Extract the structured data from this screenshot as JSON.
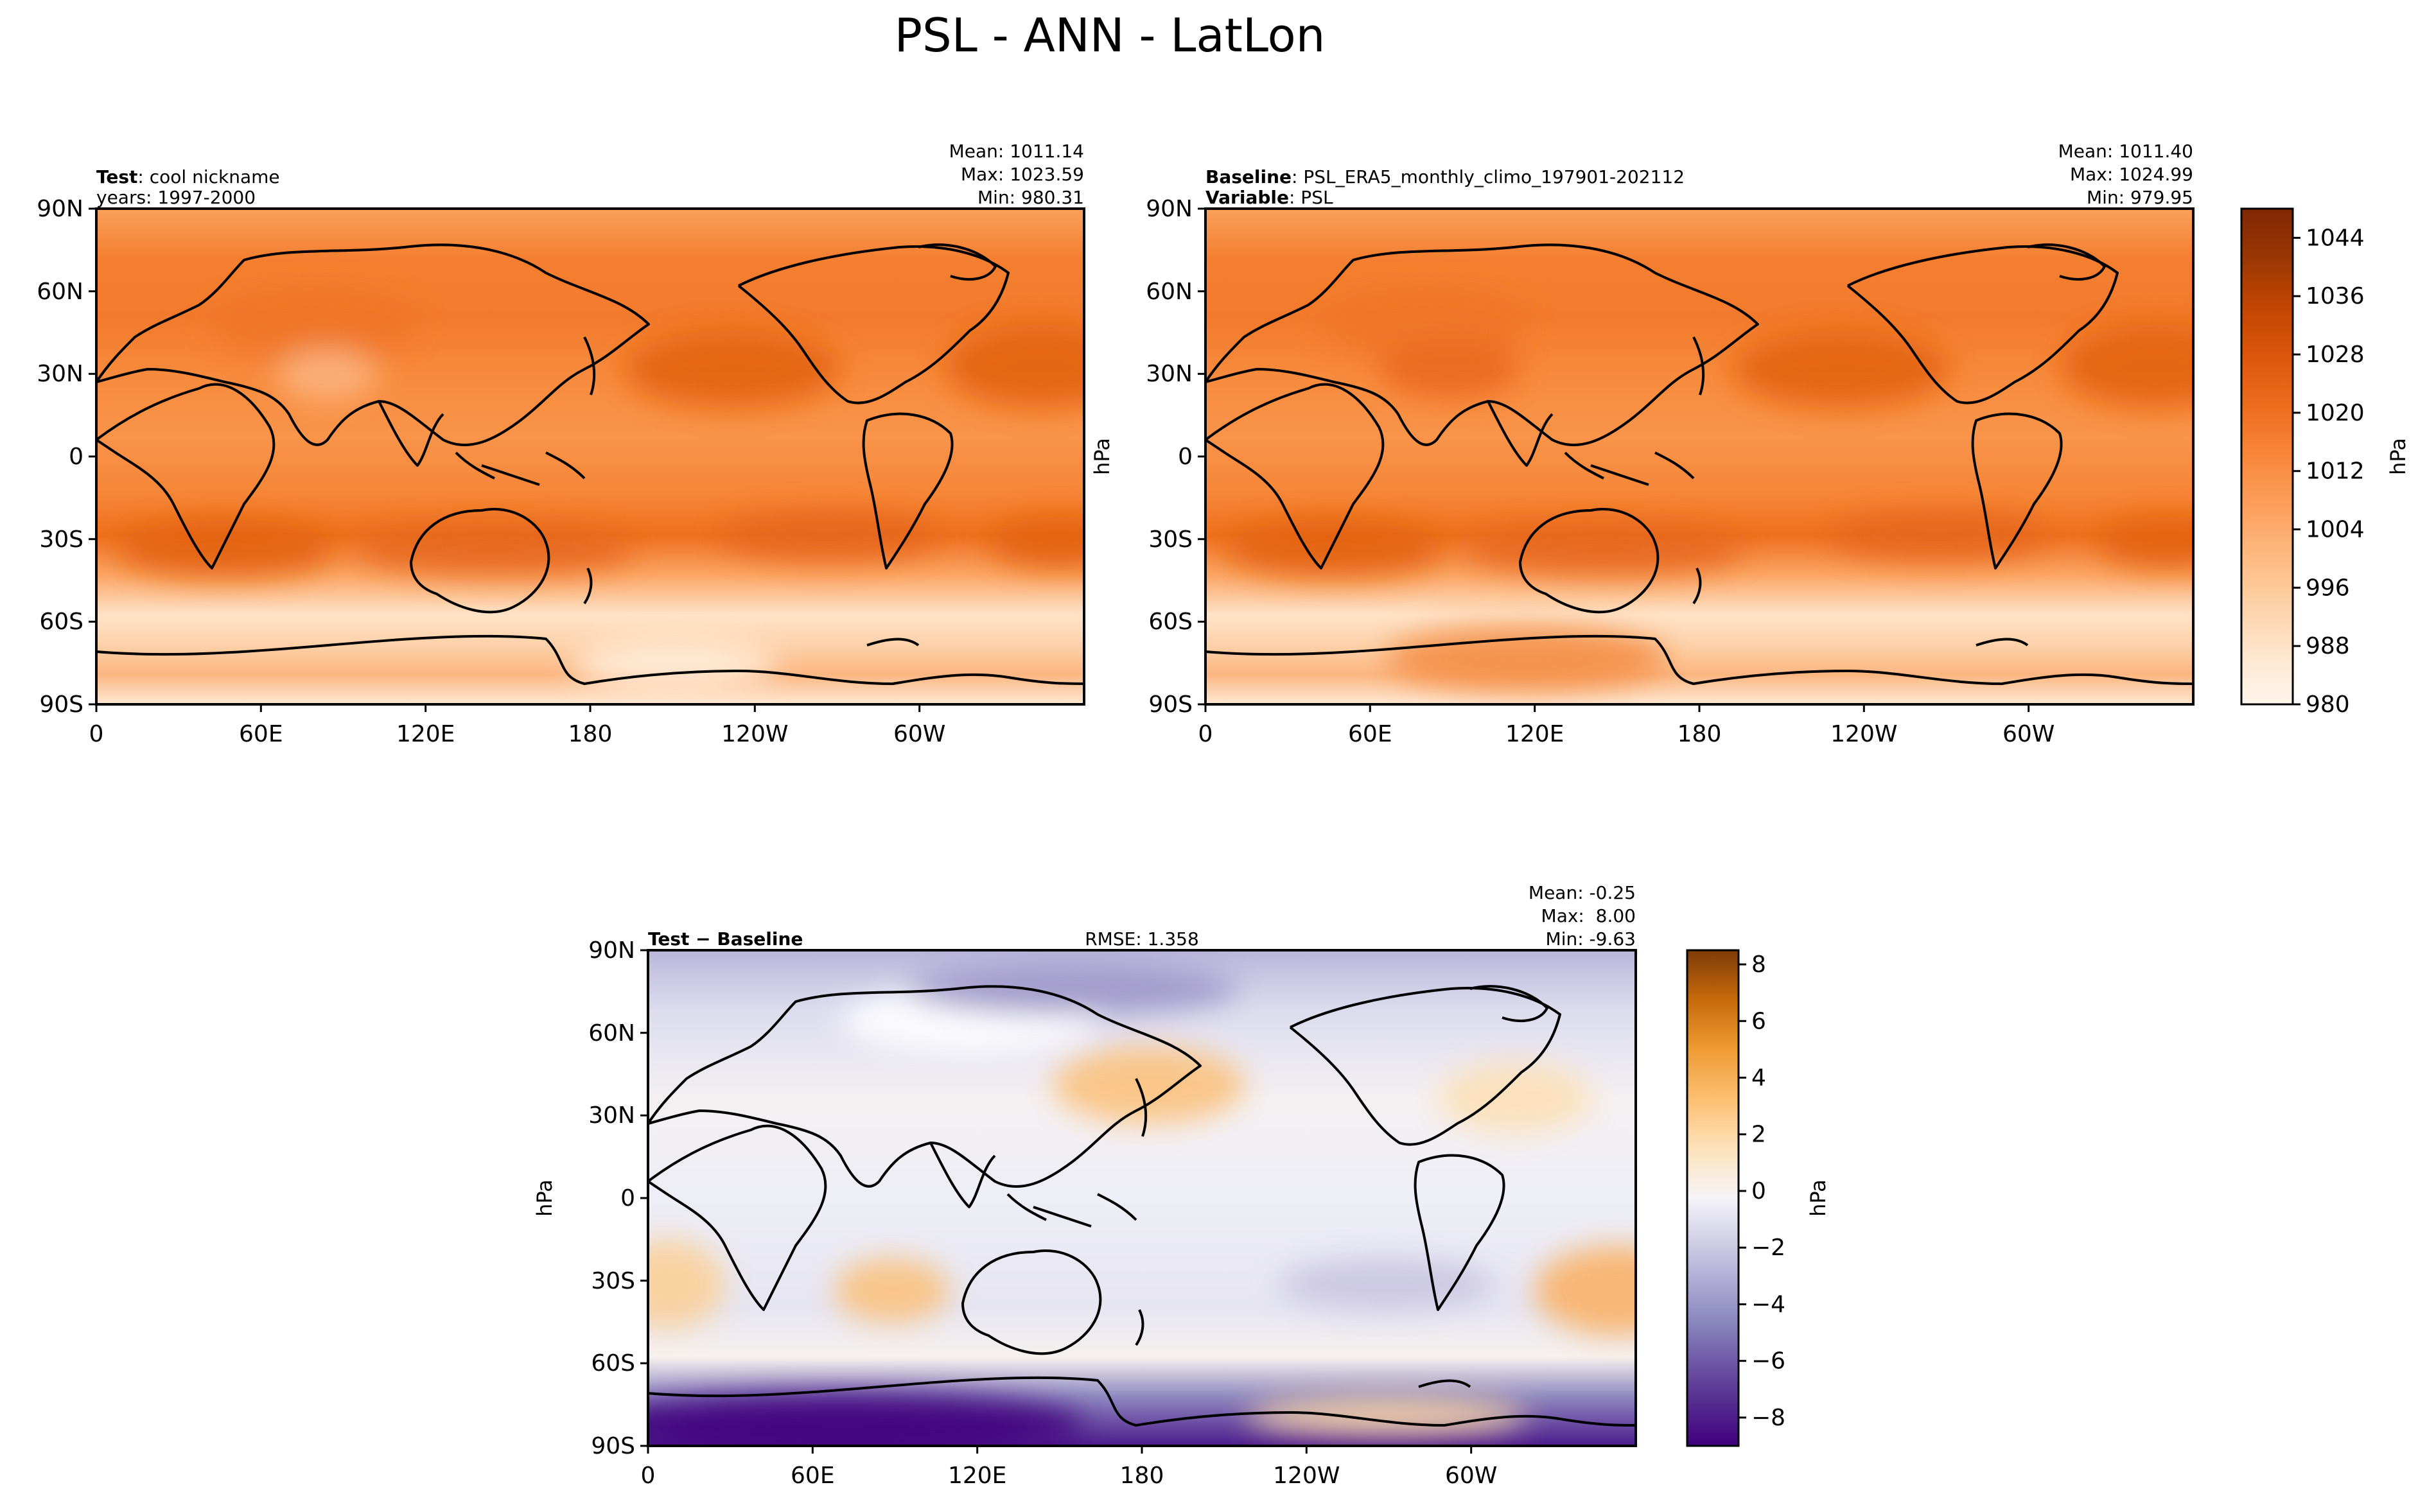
{
  "figure": {
    "title": "PSL - ANN - LatLon"
  },
  "colors": {
    "orange_ramp": [
      "#fff5eb",
      "#fee8d3",
      "#fdd9b4",
      "#fdc28c",
      "#fda762",
      "#f98d3f",
      "#ed7220",
      "#d95c0b",
      "#b94602",
      "#8c3403",
      "#7f2704"
    ],
    "diff_ramp": [
      "#3f007d",
      "#61409b",
      "#8582bc",
      "#b4b3d6",
      "#dedeed",
      "#f7f7f7",
      "#fde6c2",
      "#fdc177",
      "#e98e26",
      "#bc5c07",
      "#7f3b08"
    ],
    "coast": "#000000"
  },
  "chart_data": [
    {
      "type": "heatmap",
      "panel": "test",
      "label_bold": "Test",
      "label_text": ": cool nickname",
      "label_line2_bold": "",
      "label_line2_text": "years: 1997-2000",
      "stats": [
        "Mean: 1011.14",
        "Max: 1023.59",
        "Min: 980.31"
      ],
      "xticks": [
        "0",
        "60E",
        "120E",
        "180",
        "120W",
        "60W"
      ],
      "yticks": [
        "90N",
        "60N",
        "30N",
        "0",
        "30S",
        "60S",
        "90S"
      ],
      "mean": 1011.14,
      "max": 1023.59,
      "min": 980.31,
      "units": "hPa"
    },
    {
      "type": "heatmap",
      "panel": "baseline",
      "label_bold": "Baseline",
      "label_text": ": PSL_ERA5_monthly_climo_197901-202112",
      "label_line2_bold": "Variable",
      "label_line2_text": ": PSL",
      "stats": [
        "Mean: 1011.40",
        "Max: 1024.99",
        "Min: 979.95"
      ],
      "xticks": [
        "0",
        "60E",
        "120E",
        "180",
        "120W",
        "60W"
      ],
      "yticks": [
        "90N",
        "60N",
        "30N",
        "0",
        "30S",
        "60S",
        "90S"
      ],
      "ylabel": "hPa",
      "mean": 1011.4,
      "max": 1024.99,
      "min": 979.95,
      "units": "hPa",
      "colorbar": {
        "label": "hPa",
        "range": [
          980,
          1048
        ],
        "ticks": [
          "980",
          "988",
          "996",
          "1004",
          "1012",
          "1020",
          "1028",
          "1036",
          "1044"
        ]
      }
    },
    {
      "type": "heatmap",
      "panel": "difference",
      "label_bold": "Test − Baseline",
      "rmse": "RMSE: 1.358",
      "stats": [
        "Mean: -0.25",
        "Max:  8.00",
        "Min: -9.63"
      ],
      "xticks": [
        "0",
        "60E",
        "120E",
        "180",
        "120W",
        "60W"
      ],
      "yticks": [
        "90N",
        "60N",
        "30N",
        "0",
        "30S",
        "60S",
        "90S"
      ],
      "ylabel": "hPa",
      "mean": -0.25,
      "max": 8.0,
      "min": -9.63,
      "rmse_value": 1.358,
      "units": "hPa",
      "colorbar": {
        "label": "hPa",
        "range": [
          -9,
          8.5
        ],
        "ticks": [
          "−8",
          "−6",
          "−4",
          "−2",
          "0",
          "2",
          "4",
          "6",
          "8"
        ]
      }
    }
  ]
}
